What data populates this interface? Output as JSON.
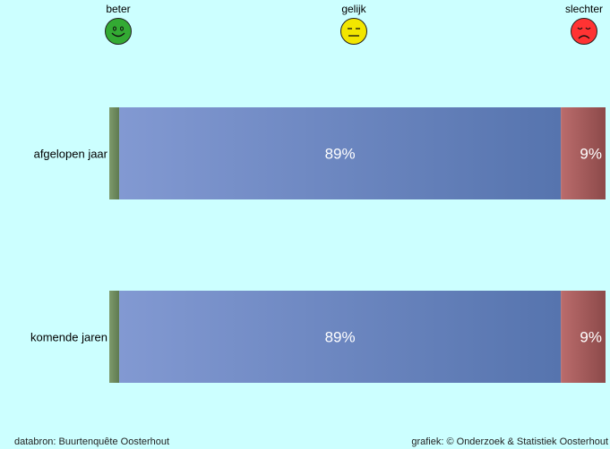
{
  "chart_data": {
    "type": "bar",
    "orientation": "horizontal",
    "stacked": true,
    "title": "",
    "categories": [
      "afgelopen jaar",
      "komende jaren"
    ],
    "series": [
      {
        "name": "beter",
        "values": [
          2,
          2
        ],
        "color": "#6e8a5e",
        "label_color": "#ffffff"
      },
      {
        "name": "gelijk",
        "values": [
          89,
          89
        ],
        "color": "#6f8cc6",
        "label_color": "#ffffff"
      },
      {
        "name": "slechter",
        "values": [
          9,
          9
        ],
        "color": "#a86060",
        "label_color": "#ffffff"
      }
    ],
    "value_suffix": "%",
    "legend_placement": "top",
    "grid": false,
    "xlim": [
      0,
      100
    ]
  },
  "legend": {
    "items": [
      {
        "label": "beter",
        "icon": "happy-face-icon",
        "color": "#33aa33"
      },
      {
        "label": "gelijk",
        "icon": "neutral-face-icon",
        "color": "#f2e600"
      },
      {
        "label": "slechter",
        "icon": "sad-face-icon",
        "color": "#ff3333"
      }
    ]
  },
  "footer": {
    "source": "databron: Buurtenquête Oosterhout",
    "credit": "grafiek: © Onderzoek & Statistiek Oosterhout"
  }
}
